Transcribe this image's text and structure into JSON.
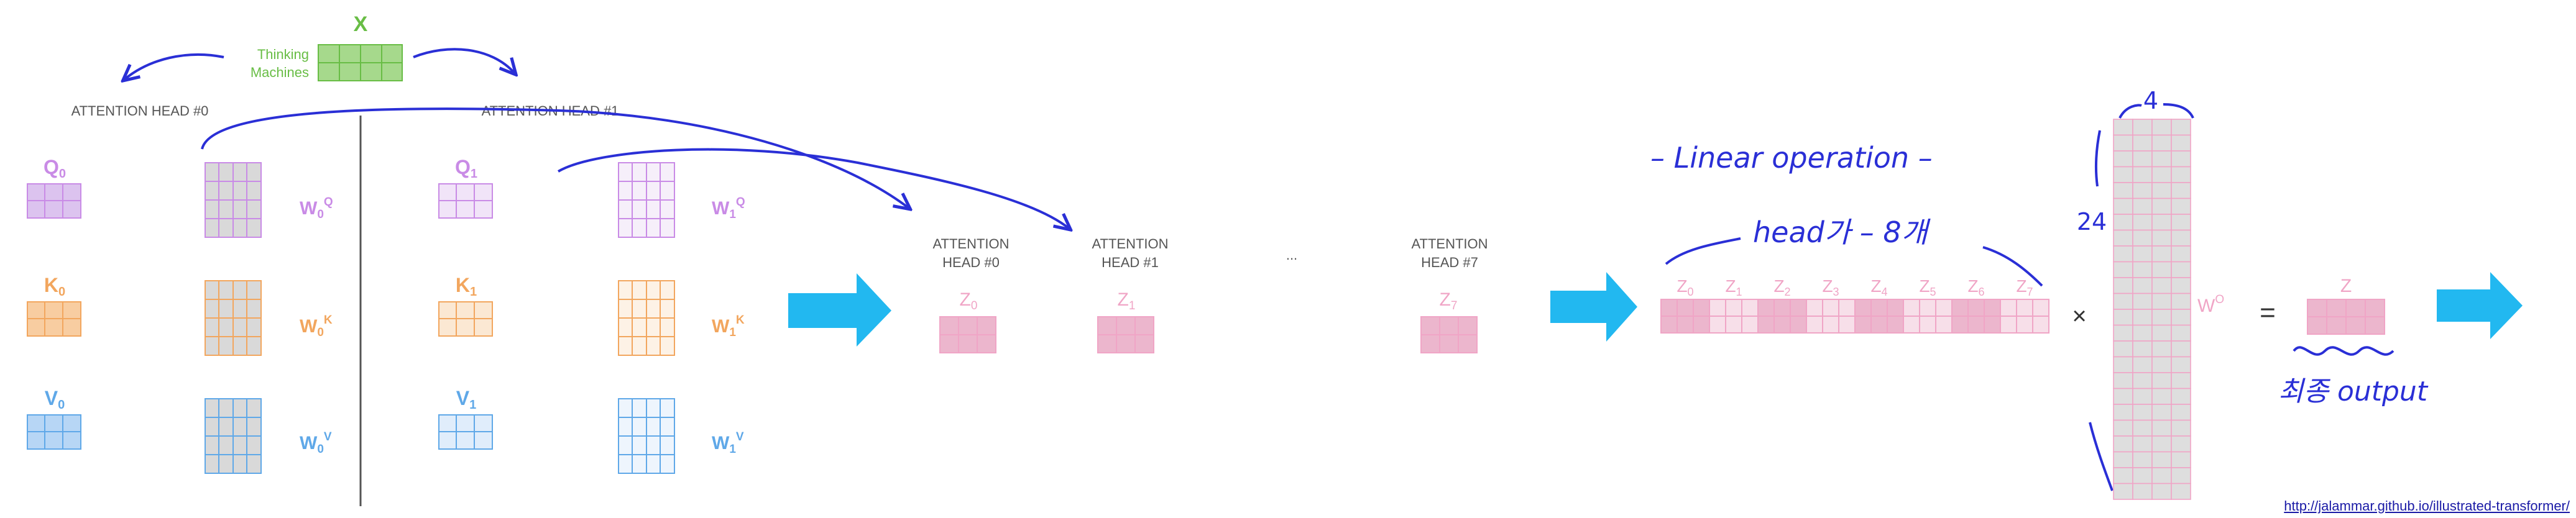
{
  "input": {
    "label": "X",
    "words": [
      "Thinking",
      "Machines"
    ]
  },
  "heads": [
    {
      "title": "ATTENTION HEAD #0",
      "q": {
        "base": "Q",
        "sub": "0"
      },
      "k": {
        "base": "K",
        "sub": "0"
      },
      "v": {
        "base": "V",
        "sub": "0"
      },
      "wq": {
        "base": "W",
        "sub": "0",
        "sup": "Q"
      },
      "wk": {
        "base": "W",
        "sub": "0",
        "sup": "K"
      },
      "wv": {
        "base": "W",
        "sub": "0",
        "sup": "V"
      }
    },
    {
      "title": "ATTENTION HEAD #1",
      "q": {
        "base": "Q",
        "sub": "1"
      },
      "k": {
        "base": "K",
        "sub": "1"
      },
      "v": {
        "base": "V",
        "sub": "1"
      },
      "wq": {
        "base": "W",
        "sub": "1",
        "sup": "Q"
      },
      "wk": {
        "base": "W",
        "sub": "1",
        "sup": "K"
      },
      "wv": {
        "base": "W",
        "sub": "1",
        "sup": "V"
      }
    }
  ],
  "outputs": {
    "heads": [
      {
        "line1": "ATTENTION",
        "line2": "HEAD #0",
        "z": {
          "base": "Z",
          "sub": "0"
        }
      },
      {
        "line1": "ATTENTION",
        "line2": "HEAD #1",
        "z": {
          "base": "Z",
          "sub": "1"
        }
      },
      {
        "line1": "ATTENTION",
        "line2": "HEAD #7",
        "z": {
          "base": "Z",
          "sub": "7"
        }
      }
    ],
    "ellipsis": "..."
  },
  "concat": {
    "labels": [
      {
        "base": "Z",
        "sub": "0"
      },
      {
        "base": "Z",
        "sub": "1"
      },
      {
        "base": "Z",
        "sub": "2"
      },
      {
        "base": "Z",
        "sub": "3"
      },
      {
        "base": "Z",
        "sub": "4"
      },
      {
        "base": "Z",
        "sub": "5"
      },
      {
        "base": "Z",
        "sub": "6"
      },
      {
        "base": "Z",
        "sub": "7"
      }
    ]
  },
  "operators": {
    "times": "×",
    "equals": "="
  },
  "wo": {
    "base": "W",
    "sup": "O"
  },
  "final_z": "Z",
  "annotations": {
    "linear": "– Linear operation –",
    "heads_count": "head가 – 8개",
    "width": "4",
    "height": "24",
    "final_output": "최종 output"
  },
  "source": "http://jalammar.github.io/illustrated-transformer/",
  "colors": {
    "q": "#c98be6",
    "q_fill": "#dcc3ef",
    "q_light": "#f1e4f8",
    "k": "#f2a65e",
    "k_fill": "#f8cda1",
    "k_light": "#fbe8d3",
    "v": "#5fa8e8",
    "v_fill": "#b7d6f5",
    "v_light": "#e0edfb",
    "x": "#68bd45",
    "x_fill": "#a6d98c",
    "z": "#f0a5c6",
    "z_fill": "#ecb6cd",
    "w0": "#d6d6d6",
    "arrow": "#22b8f0",
    "ink": "#2a2fd6"
  }
}
